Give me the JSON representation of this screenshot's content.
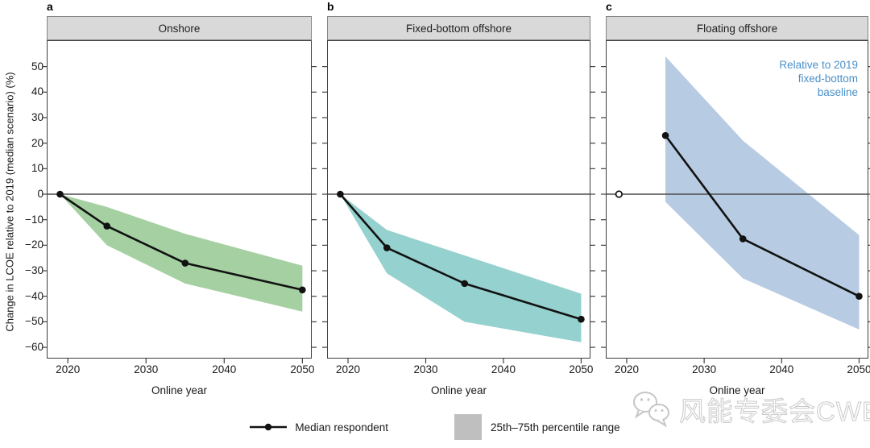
{
  "chart_data": {
    "type": "area",
    "xlabel": "Online year",
    "ylabel": "Change in LCOE relative to 2019 (median scenario) (%)",
    "x_ticks": [
      2020,
      2030,
      2040,
      2050
    ],
    "y_ticks": [
      50,
      40,
      30,
      20,
      10,
      0,
      -10,
      -20,
      -30,
      -40,
      -50,
      -60
    ],
    "x_range": [
      2017.3,
      2051.2
    ],
    "y_range": [
      -64.4,
      60.3
    ],
    "grid": "off",
    "legend_position": "bottom-center",
    "legend": {
      "median_label": "Median respondent",
      "band_label": "25th–75th percentile range",
      "band_swatch_color": "#bfbfbf"
    },
    "panels": [
      {
        "letter": "a",
        "title": "Onshore",
        "band_color": "#a5d0a1",
        "x": [
          2019,
          2025,
          2035,
          2050
        ],
        "median": [
          0,
          -12.5,
          -27,
          -37.5
        ],
        "p75": [
          0,
          -5,
          -15.5,
          -28
        ],
        "p25": [
          0,
          -20,
          -35,
          -46
        ]
      },
      {
        "letter": "b",
        "title": "Fixed-bottom offshore",
        "band_color": "#95d1ce",
        "x": [
          2019,
          2025,
          2035,
          2050
        ],
        "median": [
          0,
          -21,
          -35,
          -49
        ],
        "p75": [
          0,
          -14,
          -24,
          -39
        ],
        "p25": [
          0,
          -31,
          -50,
          -58
        ]
      },
      {
        "letter": "c",
        "title": "Floating offshore",
        "band_color": "#b7cbe3",
        "x": [
          2025,
          2035,
          2050
        ],
        "median": [
          23,
          -17.5,
          -40
        ],
        "p75": [
          54,
          21,
          -16
        ],
        "p25": [
          -3,
          -33,
          -53
        ],
        "baseline_point": {
          "x": 2019,
          "y": 0,
          "marker": "open"
        },
        "annotation": "Relative to 2019\nfixed-bottom\nbaseline",
        "annotation_color": "#4a90c8"
      }
    ]
  },
  "watermark": {
    "text": "风能专委会CWEA",
    "icon": "wechat-icon"
  }
}
